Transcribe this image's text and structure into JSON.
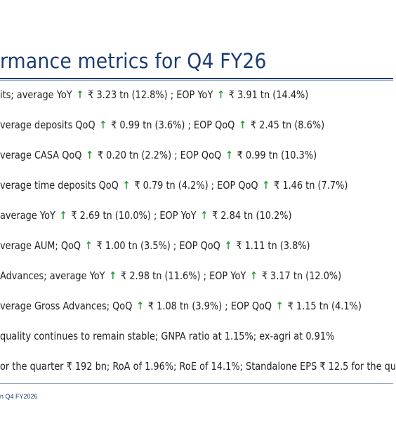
{
  "slide": {
    "title": "rmance metrics for Q4 FY26",
    "footer": "n Q4 FY2026"
  },
  "metrics": [
    {
      "parts": [
        "its; average YoY",
        "₹ 3.23 tn (12.8%) ; EOP YoY",
        "₹ 3.91 tn (14.4%)"
      ]
    },
    {
      "parts": [
        "verage deposits QoQ",
        "₹ 0.99 tn (3.6%) ; EOP QoQ",
        "₹ 2.45 tn (8.6%)"
      ]
    },
    {
      "parts": [
        "verage CASA QoQ",
        "₹ 0.20 tn (2.2%) ; EOP QoQ",
        "₹ 0.99 tn (10.3%)"
      ]
    },
    {
      "parts": [
        "verage time deposits QoQ",
        "₹ 0.79 tn (4.2%) ; EOP QoQ",
        "₹ 1.46 tn (7.7%)"
      ]
    },
    {
      "parts": [
        "average YoY",
        "₹ 2.69 tn (10.0%) ; EOP YoY",
        "₹ 2.84 tn (10.2%)"
      ]
    },
    {
      "parts": [
        "verage AUM; QoQ",
        "₹ 1.00 tn (3.5%) ; EOP QoQ",
        "₹ 1.11 tn (3.8%)"
      ]
    },
    {
      "parts": [
        "Advances; average YoY",
        "₹ 2.98 tn (11.6%) ; EOP YoY",
        "₹ 3.17 tn (12.0%)"
      ]
    },
    {
      "parts": [
        "verage Gross Advances; QoQ",
        "₹ 1.08 tn (3.9%) ; EOP QoQ",
        "₹ 1.15 tn (4.1%)"
      ]
    },
    {
      "parts": [
        "quality continues to remain stable; GNPA ratio at 1.15%; ex-agri at 0.91%"
      ]
    },
    {
      "parts": [
        "or the quarter ₹ 192 bn; RoA of 1.96%; RoE of 14.1%; Standalone EPS ₹ 12.5 for the qu"
      ]
    }
  ],
  "icons": {
    "up_arrow": "↑",
    "up_arrow_name": "up-arrow-icon"
  },
  "colors": {
    "title": "#1b3c73",
    "arrow": "#2e9a3e",
    "text": "#222222"
  }
}
